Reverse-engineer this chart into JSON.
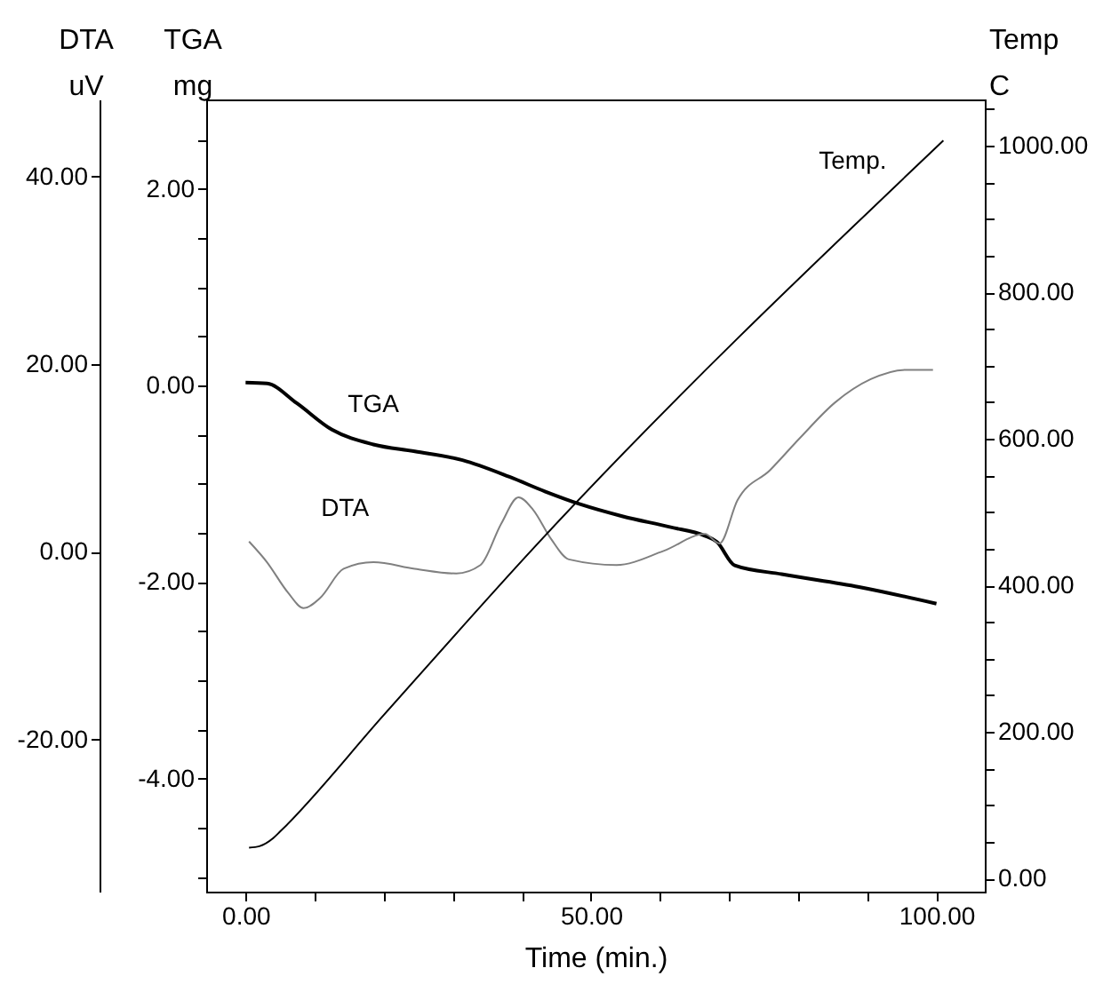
{
  "chart_data": {
    "type": "line",
    "xlabel": "Time (min.)",
    "ylabel": "TGA mg",
    "y2label": "Temp C",
    "y3label": "DTA uV",
    "grid": false,
    "xlim": [
      -5.7,
      107
    ],
    "xticks": [
      {
        "value": 0,
        "label": "0.00"
      },
      {
        "value": 10,
        "label": null
      },
      {
        "value": 20,
        "label": null
      },
      {
        "value": 30,
        "label": null
      },
      {
        "value": 40,
        "label": null
      },
      {
        "value": 50,
        "label": "50.00"
      },
      {
        "value": 60,
        "label": null
      },
      {
        "value": 70,
        "label": null
      },
      {
        "value": 80,
        "label": null
      },
      {
        "value": 90,
        "label": null
      },
      {
        "value": 100,
        "label": "100.00"
      }
    ],
    "ylim": [
      -5.15,
      2.91
    ],
    "yticks": [
      {
        "value": -5,
        "label": null
      },
      {
        "value": -4.5,
        "label": null
      },
      {
        "value": -4,
        "label": "-4.00"
      },
      {
        "value": -3.5,
        "label": null
      },
      {
        "value": -3,
        "label": null
      },
      {
        "value": -2.5,
        "label": null
      },
      {
        "value": -2,
        "label": "-2.00"
      },
      {
        "value": -1.5,
        "label": null
      },
      {
        "value": -1,
        "label": null
      },
      {
        "value": -0.5,
        "label": null
      },
      {
        "value": 0,
        "label": "0.00"
      },
      {
        "value": 0.5,
        "label": null
      },
      {
        "value": 1,
        "label": null
      },
      {
        "value": 1.5,
        "label": null
      },
      {
        "value": 2,
        "label": "2.00"
      },
      {
        "value": 2.5,
        "label": null
      }
    ],
    "y2lim": [
      -18,
      1063
    ],
    "y2ticks": [
      {
        "value": 0,
        "label": "0.00"
      },
      {
        "value": 50,
        "label": null
      },
      {
        "value": 100,
        "label": null
      },
      {
        "value": 150,
        "label": null
      },
      {
        "value": 200,
        "label": "200.00"
      },
      {
        "value": 250,
        "label": null
      },
      {
        "value": 300,
        "label": null
      },
      {
        "value": 350,
        "label": null
      },
      {
        "value": 400,
        "label": "400.00"
      },
      {
        "value": 450,
        "label": null
      },
      {
        "value": 500,
        "label": null
      },
      {
        "value": 550,
        "label": null
      },
      {
        "value": 600,
        "label": "600.00"
      },
      {
        "value": 650,
        "label": null
      },
      {
        "value": 700,
        "label": null
      },
      {
        "value": 750,
        "label": null
      },
      {
        "value": 800,
        "label": "800.00"
      },
      {
        "value": 850,
        "label": null
      },
      {
        "value": 900,
        "label": null
      },
      {
        "value": 950,
        "label": null
      },
      {
        "value": 1000,
        "label": "1000.00"
      },
      {
        "value": 1050,
        "label": null
      }
    ],
    "y3lim": [
      -36.2,
      48.2
    ],
    "y3ticks": [
      {
        "value": -20,
        "label": "-20.00"
      },
      {
        "value": 0,
        "label": "0.00"
      },
      {
        "value": 20,
        "label": "20.00"
      },
      {
        "value": 40,
        "label": "40.00"
      }
    ],
    "series": [
      {
        "name": "TGA",
        "color": "#000000",
        "x": [
          0,
          3.1,
          7.4,
          12.5,
          18.5,
          24.5,
          31.4,
          38.2,
          43.4,
          48.5,
          54.5,
          61.4,
          66.5,
          68.2,
          70.8,
          77.6,
          88.8,
          100
        ],
        "values": [
          0.03,
          0.02,
          -0.18,
          -0.45,
          -0.6,
          -0.67,
          -0.76,
          -0.93,
          -1.08,
          -1.21,
          -1.33,
          -1.44,
          -1.53,
          -1.59,
          -1.83,
          -1.92,
          -2.05,
          -2.22
        ]
      },
      {
        "name": "DTA",
        "color": "#808080",
        "axis": "y3",
        "x": [
          0.5,
          3.1,
          6.1,
          8.4,
          10.8,
          14.2,
          18.5,
          24.5,
          30.5,
          34,
          37,
          39.5,
          41.6,
          44.2,
          46.8,
          53.7,
          60.5,
          66.5,
          68.6,
          71.2,
          75.9,
          80.2,
          85.3,
          90.5,
          95.6,
          99.5
        ],
        "values": [
          1.1,
          -1.1,
          -4.3,
          -6,
          -4.9,
          -1.8,
          -1.1,
          -1.8,
          -2.3,
          -1.4,
          3,
          5.8,
          4.5,
          1.4,
          -0.8,
          -1.4,
          0.1,
          1.9,
          0.9,
          5.5,
          8.7,
          12.1,
          15.9,
          18.4,
          19.4,
          19.4
        ]
      },
      {
        "name": "Temp.",
        "color": "#000000",
        "axis": "y2",
        "x": [
          0.5,
          2,
          4,
          5,
          20,
          41.6,
          101
        ],
        "values": [
          42,
          44,
          55,
          64,
          223,
          450,
          1007
        ]
      }
    ]
  }
}
